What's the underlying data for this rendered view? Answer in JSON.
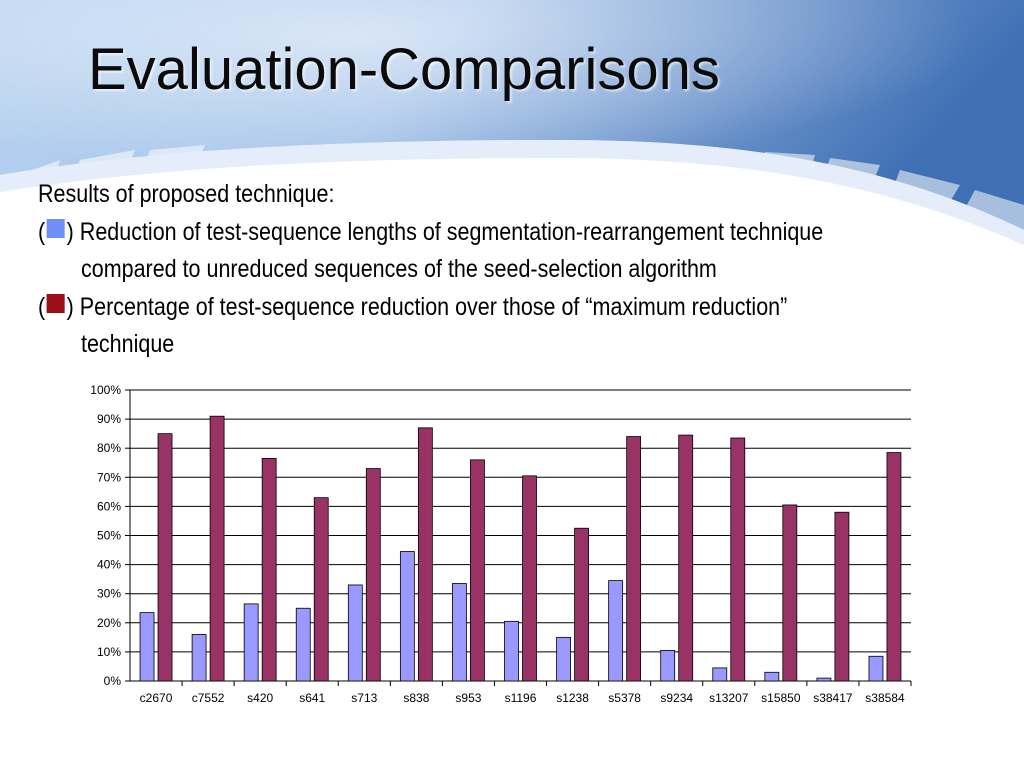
{
  "slide": {
    "title": "Evaluation-Comparisons",
    "intro": "Results of proposed technique:",
    "legend_items": [
      {
        "open": "(",
        "close": ")",
        "color": "#6f8ff6",
        "text_line1": "Reduction of test-sequence lengths of segmentation-rearrangement technique",
        "text_line2": "compared to unreduced sequences of the seed-selection algorithm"
      },
      {
        "open": "(",
        "close": ")",
        "color": "#9a0f17",
        "text_line1": "Percentage of test-sequence reduction over those of “maximum reduction”",
        "text_line2": "technique"
      }
    ]
  },
  "chart_data": {
    "type": "bar",
    "categories": [
      "c2670",
      "c7552",
      "s420",
      "s641",
      "s713",
      "s838",
      "s953",
      "s1196",
      "s1238",
      "s5378",
      "s9234",
      "s13207",
      "s15850",
      "s38417",
      "s38584"
    ],
    "series": [
      {
        "color": "#9999ff",
        "values": [
          23.5,
          16,
          26.5,
          25,
          33,
          44.5,
          33.5,
          20.5,
          15,
          34.5,
          10.5,
          4.5,
          3,
          1,
          8.5
        ]
      },
      {
        "color": "#993366",
        "values": [
          85,
          91,
          76.5,
          63,
          73,
          87,
          76,
          70.5,
          52.5,
          84,
          84.5,
          83.5,
          60.5,
          58,
          78.5
        ]
      }
    ],
    "ylim": [
      0,
      100
    ],
    "yticks": [
      "0%",
      "10%",
      "20%",
      "30%",
      "40%",
      "50%",
      "60%",
      "70%",
      "80%",
      "90%",
      "100%"
    ],
    "grid": true,
    "legend": "none"
  }
}
